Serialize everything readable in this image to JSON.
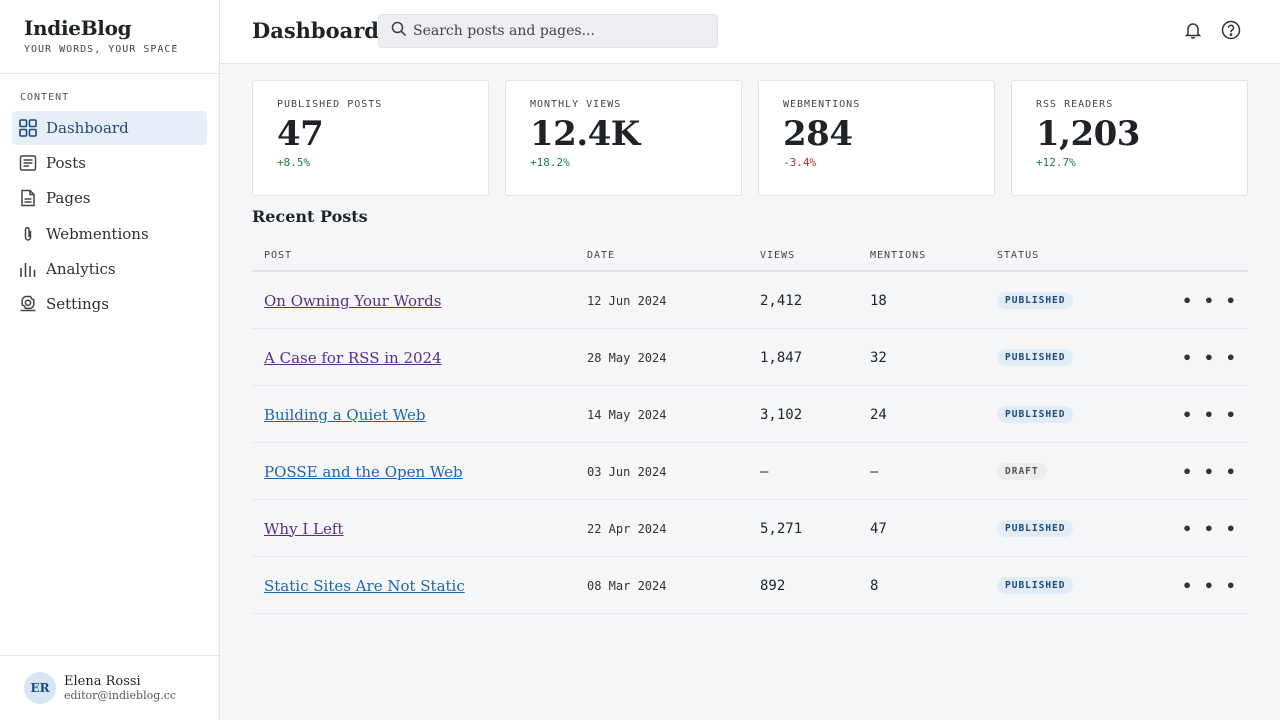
{
  "brand": {
    "name": "IndieBlog",
    "tagline": "YOUR WORDS, YOUR SPACE"
  },
  "sidebar": {
    "section_label": "CONTENT",
    "items": [
      {
        "label": "Dashboard",
        "icon": "grid-icon",
        "active": true
      },
      {
        "label": "Posts",
        "icon": "document-lines-icon"
      },
      {
        "label": "Pages",
        "icon": "page-icon"
      },
      {
        "label": "Webmentions",
        "icon": "paperclip-icon"
      },
      {
        "label": "Analytics",
        "icon": "bar-chart-icon"
      },
      {
        "label": "Settings",
        "icon": "gear-icon"
      }
    ]
  },
  "user": {
    "initials": "ER",
    "name": "Elena Rossi",
    "email": "editor@indieblog.cc"
  },
  "header": {
    "title": "Dashboard",
    "search_placeholder": "Search posts and pages...",
    "notifications_icon": "bell-icon",
    "help_icon": "help-circle-icon"
  },
  "stats": [
    {
      "label": "PUBLISHED POSTS",
      "value": "47",
      "change": "+8.5%",
      "trend": "up"
    },
    {
      "label": "MONTHLY VIEWS",
      "value": "12.4K",
      "change": "+18.2%",
      "trend": "up"
    },
    {
      "label": "WEBMENTIONS",
      "value": "284",
      "change": "-3.4%",
      "trend": "down"
    },
    {
      "label": "RSS READERS",
      "value": "1,203",
      "change": "+12.7%",
      "trend": "up"
    }
  ],
  "recent": {
    "title": "Recent Posts",
    "columns": [
      "POST",
      "DATE",
      "VIEWS",
      "MENTIONS",
      "STATUS"
    ],
    "rows": [
      {
        "title": "On Owning Your Words",
        "date": "12 Jun 2024",
        "views": "2,412",
        "mentions": "18",
        "status": "PUBLISHED",
        "visited": true
      },
      {
        "title": "A Case for RSS in 2024",
        "date": "28 May 2024",
        "views": "1,847",
        "mentions": "32",
        "status": "PUBLISHED",
        "visited": true
      },
      {
        "title": "Building a Quiet Web",
        "date": "14 May 2024",
        "views": "3,102",
        "mentions": "24",
        "status": "PUBLISHED",
        "visited": false
      },
      {
        "title": "POSSE and the Open Web",
        "date": "03 Jun 2024",
        "views": "—",
        "mentions": "—",
        "status": "DRAFT",
        "visited": false
      },
      {
        "title": "Why I Left",
        "date": "22 Apr 2024",
        "views": "5,271",
        "mentions": "47",
        "status": "PUBLISHED",
        "visited": true
      },
      {
        "title": "Static Sites Are Not Static",
        "date": "08 Mar 2024",
        "views": "892",
        "mentions": "8",
        "status": "PUBLISHED",
        "visited": false
      }
    ],
    "more_label": "• • •"
  },
  "colors": {
    "accent": "#1d4a7a",
    "active_bg": "#e6eef7",
    "positive": "#1a7f3c",
    "negative": "#c0262d",
    "visited_link": "#5a2d82",
    "link": "#1a66b0"
  }
}
